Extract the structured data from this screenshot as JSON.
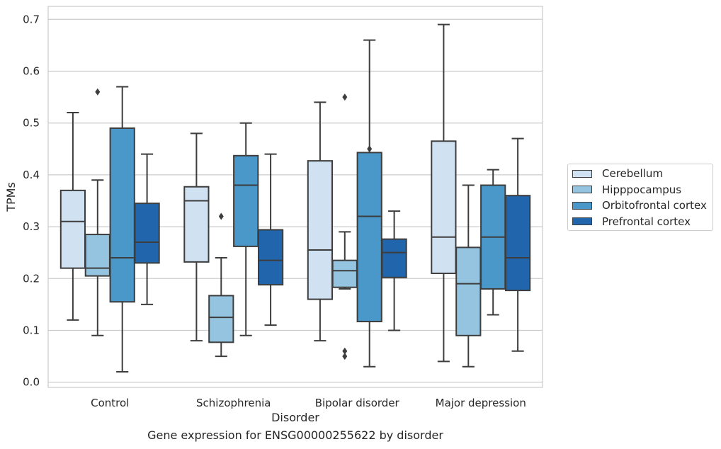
{
  "chart_data": {
    "type": "box",
    "xlabel": "Disorder",
    "ylabel": "TPMs",
    "caption": "Gene expression for ENSG00000255622 by disorder",
    "ylim": [
      -0.01,
      0.725
    ],
    "yticks": [
      "0.0",
      "0.1",
      "0.2",
      "0.3",
      "0.4",
      "0.5",
      "0.6",
      "0.7"
    ],
    "ytick_values": [
      0,
      0.1,
      0.2,
      0.3,
      0.4,
      0.5,
      0.6,
      0.7
    ],
    "grid": "horizontal",
    "legend_position": "right",
    "categories": [
      "Control",
      "Schizophrenia",
      "Bipolar disorder",
      "Major depression"
    ],
    "series": [
      {
        "name": "Cerebellum",
        "color": "#d0e1f2",
        "boxes": [
          {
            "q1": 0.22,
            "median": 0.31,
            "q3": 0.37,
            "whisker_low": 0.12,
            "whisker_high": 0.52,
            "outliers": []
          },
          {
            "q1": 0.232,
            "median": 0.35,
            "q3": 0.377,
            "whisker_low": 0.08,
            "whisker_high": 0.48,
            "outliers": []
          },
          {
            "q1": 0.16,
            "median": 0.255,
            "q3": 0.427,
            "whisker_low": 0.08,
            "whisker_high": 0.54,
            "outliers": []
          },
          {
            "q1": 0.21,
            "median": 0.28,
            "q3": 0.465,
            "whisker_low": 0.04,
            "whisker_high": 0.69,
            "outliers": []
          }
        ]
      },
      {
        "name": "Hipppocampus",
        "color": "#94c4df",
        "boxes": [
          {
            "q1": 0.205,
            "median": 0.22,
            "q3": 0.285,
            "whisker_low": 0.09,
            "whisker_high": 0.39,
            "outliers": [
              0.56
            ]
          },
          {
            "q1": 0.077,
            "median": 0.125,
            "q3": 0.167,
            "whisker_low": 0.05,
            "whisker_high": 0.24,
            "outliers": [
              0.32
            ]
          },
          {
            "q1": 0.183,
            "median": 0.215,
            "q3": 0.235,
            "whisker_low": 0.18,
            "whisker_high": 0.29,
            "outliers": [
              0.55,
              0.06,
              0.05
            ]
          },
          {
            "q1": 0.09,
            "median": 0.19,
            "q3": 0.26,
            "whisker_low": 0.03,
            "whisker_high": 0.38,
            "outliers": []
          }
        ]
      },
      {
        "name": "Orbitofrontal cortex",
        "color": "#4a98c9",
        "boxes": [
          {
            "q1": 0.155,
            "median": 0.24,
            "q3": 0.49,
            "whisker_low": 0.02,
            "whisker_high": 0.57,
            "outliers": []
          },
          {
            "q1": 0.262,
            "median": 0.38,
            "q3": 0.437,
            "whisker_low": 0.09,
            "whisker_high": 0.5,
            "outliers": []
          },
          {
            "q1": 0.117,
            "median": 0.32,
            "q3": 0.443,
            "whisker_low": 0.03,
            "whisker_high": 0.66,
            "outliers": [
              0.45
            ]
          },
          {
            "q1": 0.18,
            "median": 0.28,
            "q3": 0.38,
            "whisker_low": 0.13,
            "whisker_high": 0.41,
            "outliers": []
          }
        ]
      },
      {
        "name": "Prefrontal cortex",
        "color": "#2166ac",
        "boxes": [
          {
            "q1": 0.23,
            "median": 0.27,
            "q3": 0.345,
            "whisker_low": 0.15,
            "whisker_high": 0.44,
            "outliers": []
          },
          {
            "q1": 0.188,
            "median": 0.235,
            "q3": 0.294,
            "whisker_low": 0.11,
            "whisker_high": 0.44,
            "outliers": []
          },
          {
            "q1": 0.202,
            "median": 0.25,
            "q3": 0.276,
            "whisker_low": 0.1,
            "whisker_high": 0.33,
            "outliers": []
          },
          {
            "q1": 0.177,
            "median": 0.24,
            "q3": 0.36,
            "whisker_low": 0.06,
            "whisker_high": 0.47,
            "outliers": []
          }
        ]
      }
    ]
  }
}
